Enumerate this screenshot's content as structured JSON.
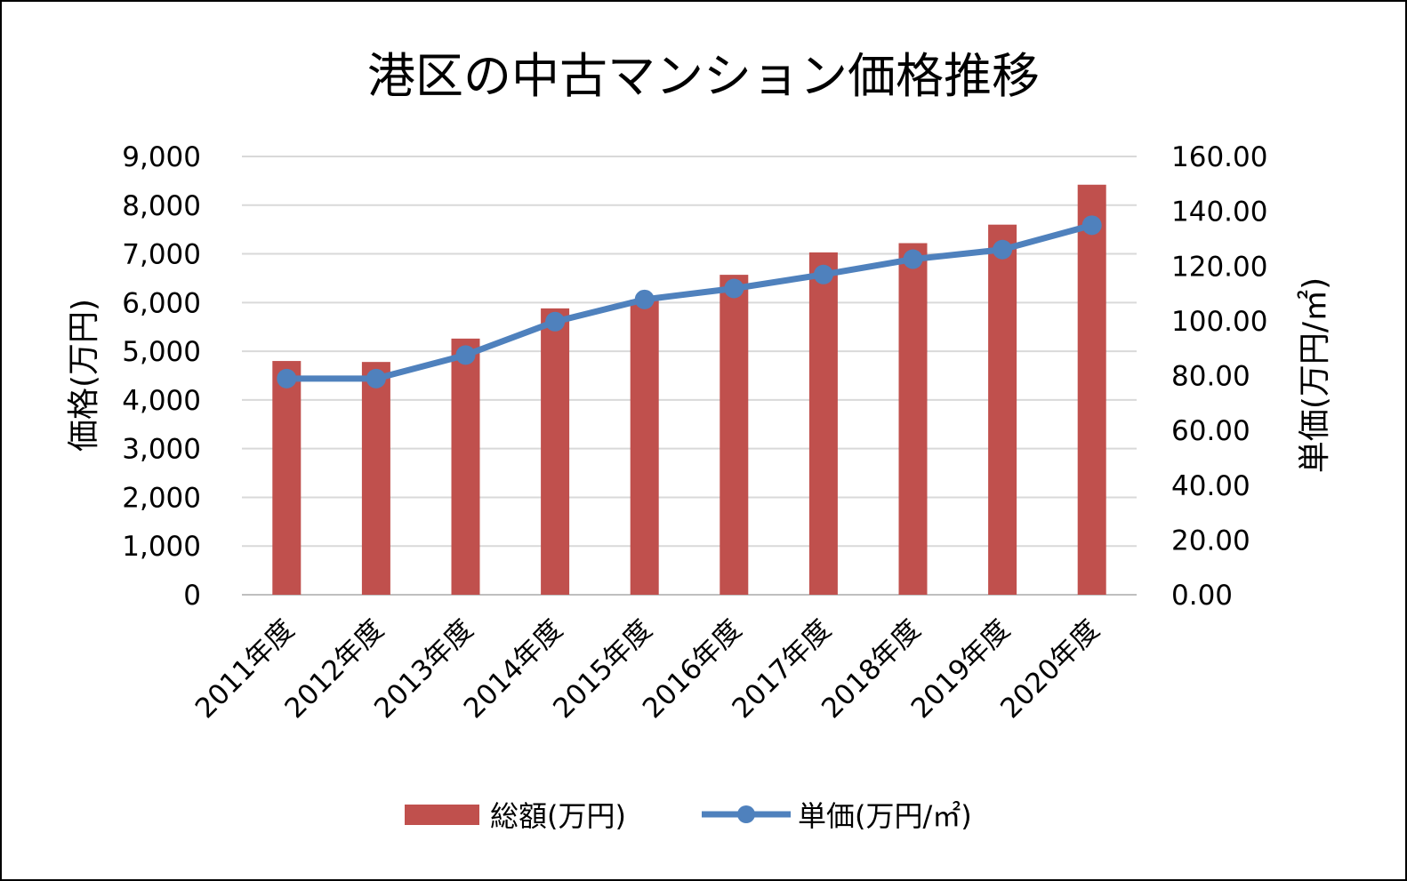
{
  "chart_data": {
    "type": "bar",
    "title": "港区の中古マンション価格推移",
    "categories": [
      "2011年度",
      "2012年度",
      "2013年度",
      "2014年度",
      "2015年度",
      "2016年度",
      "2017年度",
      "2018年度",
      "2019年度",
      "2020年度"
    ],
    "series": [
      {
        "name": "総額(万円)",
        "type": "bar",
        "axis": "left",
        "color": "#c0504d",
        "values": [
          4800,
          4780,
          5260,
          5880,
          6060,
          6570,
          7030,
          7220,
          7600,
          8420
        ]
      },
      {
        "name": "単価(万円/㎡)",
        "type": "line",
        "axis": "right",
        "color": "#4f81bd",
        "values": [
          78.9,
          78.9,
          87.5,
          99.7,
          107.8,
          111.8,
          116.9,
          122.5,
          126.0,
          134.9
        ]
      }
    ],
    "ylabel": "価格(万円)",
    "y2label": "単価(万円/㎡)",
    "ylim": [
      0,
      9000
    ],
    "y2lim": [
      0,
      160
    ],
    "yticks": [
      "0",
      "1,000",
      "2,000",
      "3,000",
      "4,000",
      "5,000",
      "6,000",
      "7,000",
      "8,000",
      "9,000"
    ],
    "y2ticks": [
      "0.00",
      "20.00",
      "40.00",
      "60.00",
      "80.00",
      "100.00",
      "120.00",
      "140.00",
      "160.00"
    ],
    "grid": true,
    "legend": "bottom"
  }
}
